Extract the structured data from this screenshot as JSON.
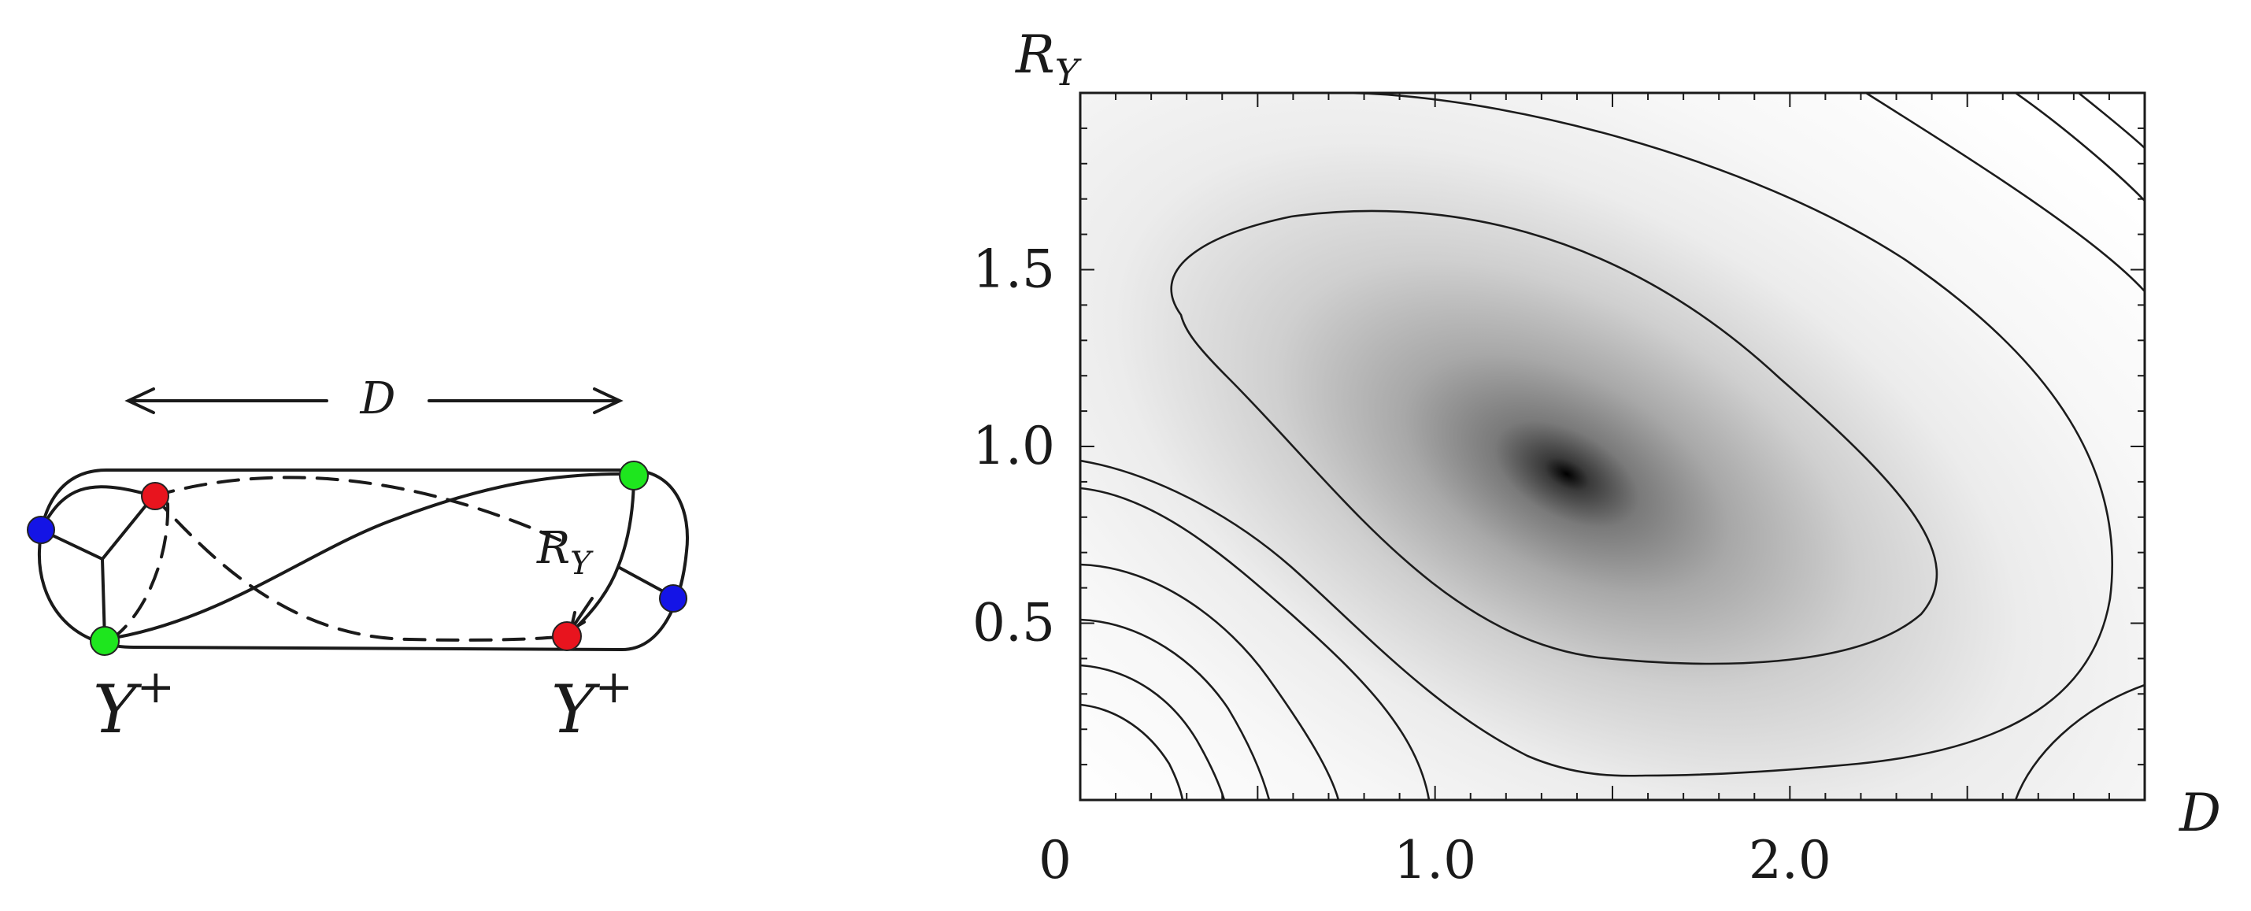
{
  "diagram": {
    "distance_label": "D",
    "radius_label": "R",
    "radius_sub": "Y",
    "left_end_label": "Y",
    "right_end_label": "Y",
    "end_superscript": "+",
    "node_colors": {
      "red": "#e8141e",
      "green": "#1ee61e",
      "blue": "#1414e6"
    }
  },
  "plot": {
    "y_axis_label": "R",
    "y_axis_sub": "Y",
    "x_axis_label": "D",
    "y_ticks": [
      "1.5",
      "1.0",
      "0.5"
    ],
    "x_ticks": [
      "0",
      "1.0",
      "2.0"
    ]
  },
  "chart_data": {
    "type": "heatmap",
    "xlabel": "D",
    "ylabel": "R_Y",
    "xlim": [
      0,
      3.0
    ],
    "ylim": [
      0,
      2.0
    ],
    "minimum": {
      "x": 1.42,
      "y": 0.93
    },
    "x_tick_values": [
      0,
      1.0,
      2.0
    ],
    "y_tick_values": [
      0.5,
      1.0,
      1.5
    ]
  }
}
